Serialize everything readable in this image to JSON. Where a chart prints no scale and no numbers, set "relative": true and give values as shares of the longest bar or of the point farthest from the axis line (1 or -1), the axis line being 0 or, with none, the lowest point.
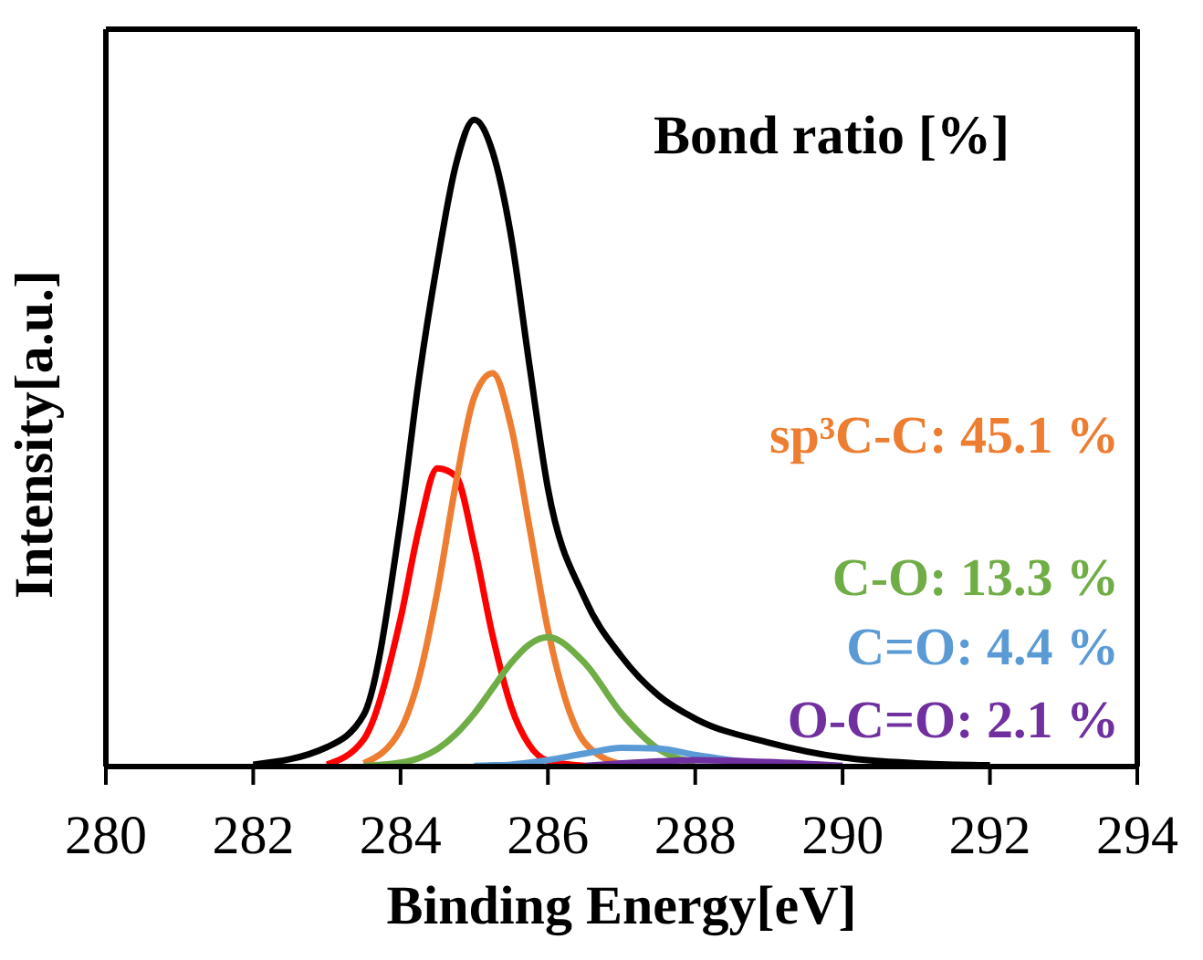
{
  "chart_data": {
    "type": "line",
    "relative": true,
    "xlabel": "Binding Energy[eV]",
    "ylabel": "Intensity[a.u.]",
    "annotations": [
      "Bond ratio [%]"
    ],
    "x": [
      282,
      283,
      283.5,
      284,
      284.25,
      284.5,
      284.75,
      285,
      285.25,
      285.5,
      285.75,
      286,
      286.5,
      287,
      287.5,
      288,
      289,
      290,
      291,
      292
    ],
    "series": [
      {
        "color": "#000000",
        "values": [
          0.003,
          0.03,
          0.08,
          0.38,
          0.6,
          0.78,
          0.93,
          1,
          0.95,
          0.82,
          0.62,
          0.43,
          0.26,
          0.17,
          0.11,
          0.074,
          0.037,
          0.014,
          0.005,
          0.002
        ]
      },
      {
        "color": "#ff0000",
        "values": [
          null,
          0.003,
          0.042,
          0.229,
          0.368,
          0.461,
          0.449,
          0.341,
          0.202,
          0.093,
          0.033,
          0.009,
          0.001,
          null,
          null,
          null,
          null,
          null,
          null,
          null
        ]
      },
      {
        "name": "sp³C-C: 45.1 %",
        "color": "#ed7d31",
        "values": [
          null,
          null,
          0.005,
          0.057,
          0.137,
          0.271,
          0.437,
          0.571,
          0.608,
          0.526,
          0.37,
          0.212,
          0.037,
          0.003,
          null,
          null,
          null,
          null,
          null,
          null
        ]
      },
      {
        "name": "C-O: 13.3 %",
        "color": "#70ad47",
        "values": [
          null,
          null,
          0.001,
          0.006,
          0.013,
          0.027,
          0.05,
          0.082,
          0.121,
          0.16,
          0.189,
          0.2,
          0.16,
          0.082,
          0.027,
          0.006,
          null,
          null,
          null,
          null
        ]
      },
      {
        "name": "C=O: 4.4 %",
        "color": "#5b9bd5",
        "values": [
          null,
          null,
          null,
          null,
          null,
          null,
          null,
          0.001,
          0.002,
          0.003,
          0.006,
          0.01,
          0.02,
          0.029,
          0.028,
          0.018,
          0.002,
          null,
          null,
          null
        ]
      },
      {
        "name": "O-C=O: 2.1 %",
        "color": "#7030a0",
        "values": [
          null,
          null,
          null,
          null,
          null,
          null,
          null,
          null,
          null,
          null,
          null,
          null,
          0.001,
          0.005,
          0.008,
          0.01,
          0.007,
          0.001,
          null,
          null
        ]
      }
    ],
    "xlim": [
      280,
      294
    ],
    "xticks": [
      280,
      282,
      284,
      286,
      288,
      290,
      292,
      294
    ],
    "grid": false,
    "legend": false,
    "marker": "none",
    "line_style": "solid"
  }
}
